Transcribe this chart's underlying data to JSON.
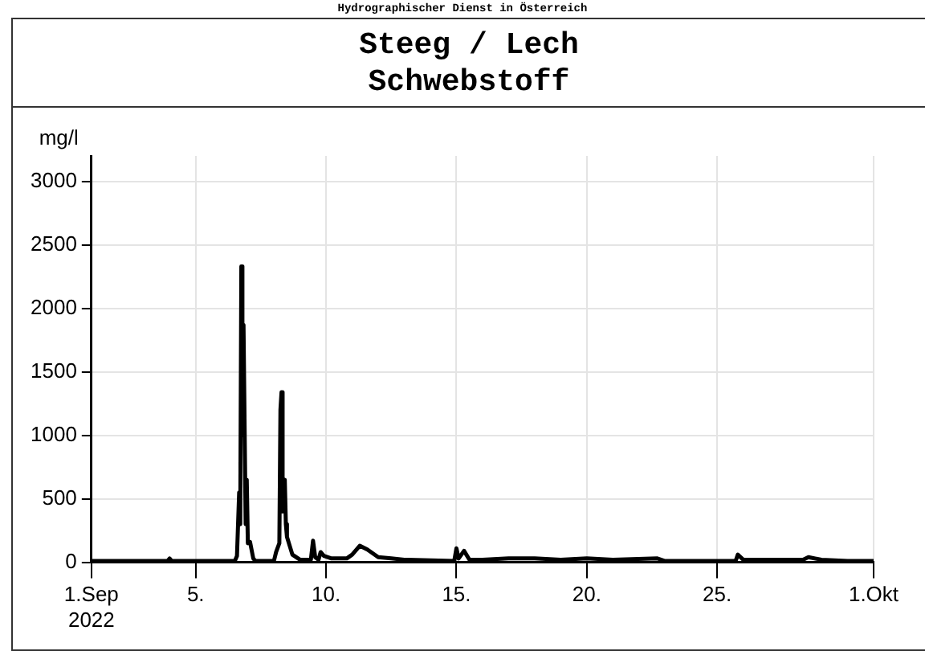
{
  "chart_data": {
    "type": "line",
    "title": "Steeg / Lech",
    "subtitle": "Schwebstoff",
    "ylabel": "mg/l",
    "annotations": [
      "Hydrographischer Dienst in Österreich"
    ],
    "x": [
      "2022-09-01T00:00",
      "2022-09-03T22:00",
      "2022-09-04T00:00",
      "2022-09-04T02:00",
      "2022-09-06T12:00",
      "2022-09-06T14:00",
      "2022-09-06T16:00",
      "2022-09-06T17:00",
      "2022-09-06T18:00",
      "2022-09-06T19:00",
      "2022-09-06T20:00",
      "2022-09-06T22:00",
      "2022-09-06T23:00",
      "2022-09-07T00:00",
      "2022-09-07T02:00",
      "2022-09-07T05:00",
      "2022-09-07T07:00",
      "2022-09-08T00:00",
      "2022-09-08T02:00",
      "2022-09-08T05:00",
      "2022-09-08T06:00",
      "2022-09-08T07:00",
      "2022-09-08T08:00",
      "2022-09-08T10:00",
      "2022-09-08T11:00",
      "2022-09-08T12:00",
      "2022-09-08T17:00",
      "2022-09-09T00:00",
      "2022-09-09T10:00",
      "2022-09-09T12:00",
      "2022-09-09T14:00",
      "2022-09-09T17:00",
      "2022-09-09T19:00",
      "2022-09-09T22:00",
      "2022-09-10T05:00",
      "2022-09-10T19:00",
      "2022-09-11T00:00",
      "2022-09-11T07:00",
      "2022-09-11T14:00",
      "2022-09-12T00:00",
      "2022-09-12T12:00",
      "2022-09-13T00:00",
      "2022-09-14T22:00",
      "2022-09-15T00:00",
      "2022-09-15T02:00",
      "2022-09-15T07:00",
      "2022-09-15T12:00",
      "2022-09-16T00:00",
      "2022-09-17T00:00",
      "2022-09-18T00:00",
      "2022-09-19T00:00",
      "2022-09-20T00:00",
      "2022-09-21T00:00",
      "2022-09-22T17:00",
      "2022-09-23T00:00",
      "2022-09-25T17:00",
      "2022-09-25T19:00",
      "2022-09-26T00:00",
      "2022-09-28T07:00",
      "2022-09-28T12:00",
      "2022-09-29T00:00",
      "2022-09-30T00:00",
      "2022-10-01T00:00"
    ],
    "series": [
      {
        "color": "#000000",
        "values": [
          10,
          10,
          30,
          10,
          10,
          50,
          550,
          300,
          2330,
          1000,
          1870,
          300,
          650,
          150,
          160,
          30,
          10,
          10,
          80,
          150,
          1200,
          1340,
          400,
          650,
          300,
          200,
          60,
          20,
          20,
          170,
          40,
          20,
          80,
          50,
          30,
          30,
          60,
          130,
          100,
          40,
          30,
          20,
          10,
          110,
          30,
          90,
          20,
          20,
          30,
          30,
          20,
          30,
          20,
          30,
          10,
          10,
          60,
          20,
          20,
          40,
          20,
          10,
          10
        ]
      }
    ],
    "xlim": [
      "2022-09-01",
      "2022-10-01"
    ],
    "xticks": [
      {
        "value": "2022-09-01",
        "label": "1.Sep\n2022"
      },
      {
        "value": "2022-09-05",
        "label": "5."
      },
      {
        "value": "2022-09-10",
        "label": "10."
      },
      {
        "value": "2022-09-15",
        "label": "15."
      },
      {
        "value": "2022-09-20",
        "label": "20."
      },
      {
        "value": "2022-09-25",
        "label": "25."
      },
      {
        "value": "2022-10-01",
        "label": "1.Okt"
      }
    ],
    "ylim": [
      0,
      3200
    ],
    "yticks": [
      0,
      500,
      1000,
      1500,
      2000,
      2500,
      3000
    ],
    "grid": true,
    "marker": "none",
    "line_style": "solid"
  }
}
